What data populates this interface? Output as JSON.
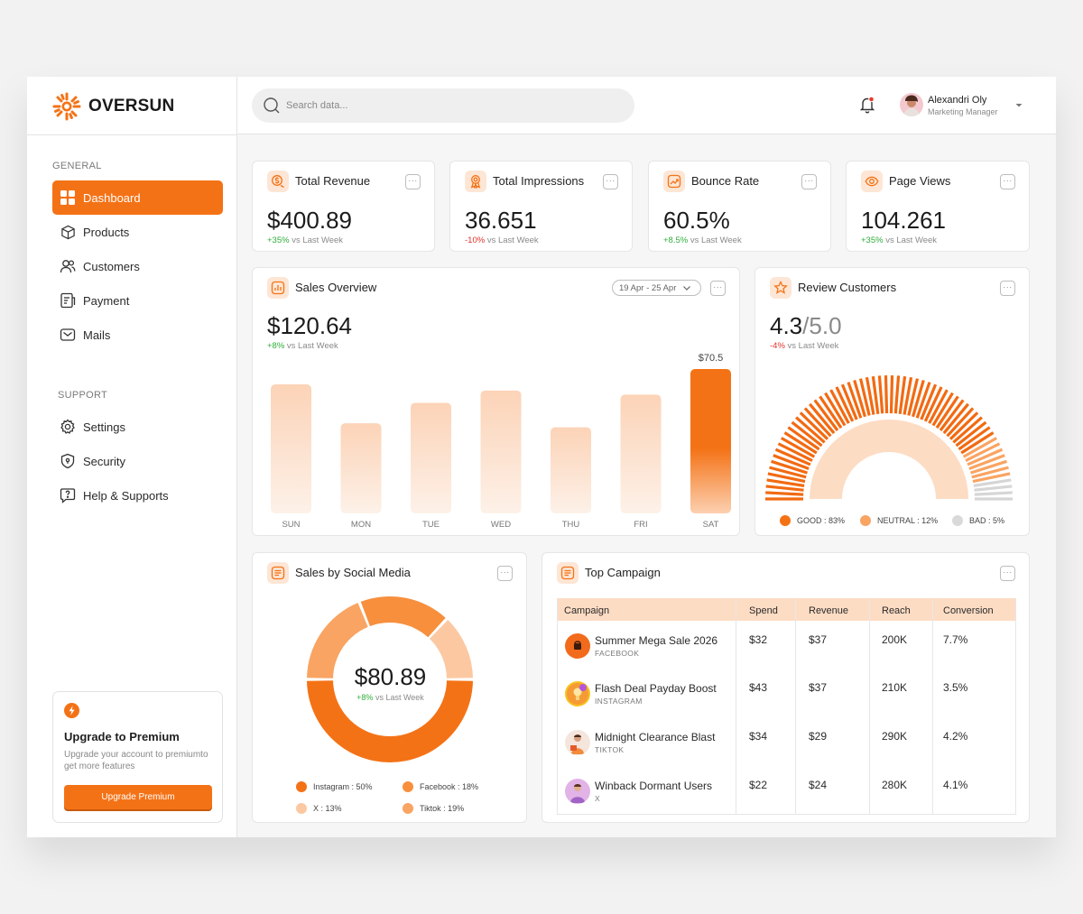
{
  "brand": {
    "name": "OVERSUN",
    "accent": "#F47216",
    "light_accent": "#FDE6D5"
  },
  "sidebar": {
    "general_label": "GENERAL",
    "items": [
      {
        "label": "Dashboard",
        "icon": "grid-icon",
        "active": true
      },
      {
        "label": "Products",
        "icon": "box-icon"
      },
      {
        "label": "Customers",
        "icon": "users-icon"
      },
      {
        "label": "Payment",
        "icon": "receipt-icon"
      },
      {
        "label": "Mails",
        "icon": "mail-icon"
      }
    ],
    "support_label": "SUPPORT",
    "support_items": [
      {
        "label": "Settings",
        "icon": "gear-icon"
      },
      {
        "label": "Security",
        "icon": "shield-icon"
      },
      {
        "label": "Help & Supports",
        "icon": "help-icon"
      }
    ],
    "upgrade": {
      "title": "Upgrade to Premium",
      "description": "Upgrade your account to premiumto get more features",
      "button": "Upgrade Premium"
    }
  },
  "header": {
    "search_placeholder": "Search data...",
    "user": {
      "name": "Alexandri Oly",
      "role": "Marketing Manager"
    }
  },
  "kpis": [
    {
      "title": "Total Revenue",
      "value": "$400.89",
      "delta": "+35%",
      "direction": "up",
      "suffix": "vs Last Week",
      "icon": "dollar-icon"
    },
    {
      "title": "Total Impressions",
      "value": "36.651",
      "delta": "-10%",
      "direction": "down",
      "suffix": "vs Last Week",
      "icon": "badge-icon"
    },
    {
      "title": "Bounce Rate",
      "value": "60.5%",
      "delta": "+8.5%",
      "direction": "up",
      "suffix": "vs Last Week",
      "icon": "trend-icon"
    },
    {
      "title": "Page Views",
      "value": "104.261",
      "delta": "+35%",
      "direction": "up",
      "suffix": "vs Last Week",
      "icon": "eye-icon"
    }
  ],
  "sales_overview": {
    "title": "Sales Overview",
    "date_range": "19 Apr - 25 Apr",
    "value": "$120.64",
    "delta": "+8%",
    "suffix": "vs Last Week",
    "highlight_label": "$70.5"
  },
  "review": {
    "title": "Review Customers",
    "score": "4.3",
    "max": "/5.0",
    "delta": "-4%",
    "suffix": "vs Last Week",
    "legend": [
      "GOOD : 83%",
      "NEUTRAL : 12%",
      "BAD : 5%"
    ]
  },
  "social": {
    "title": "Sales by Social Media",
    "value": "$80.89",
    "delta": "+8%",
    "suffix": "vs Last Week",
    "legend": [
      "Instagram : 50%",
      "Facebook : 18%",
      "X : 13%",
      "Tiktok : 19%"
    ]
  },
  "campaign": {
    "title": "Top Campaign",
    "columns": [
      "Campaign",
      "Spend",
      "Revenue",
      "Reach",
      "Conversion"
    ],
    "rows": [
      {
        "name": "Summer Mega Sale 2026",
        "platform": "FACEBOOK",
        "spend": "$32",
        "revenue": "$37",
        "reach": "200K",
        "conversion": "7.7%"
      },
      {
        "name": "Flash Deal Payday Boost",
        "platform": "INSTAGRAM",
        "spend": "$43",
        "revenue": "$37",
        "reach": "210K",
        "conversion": "3.5%"
      },
      {
        "name": "Midnight Clearance Blast",
        "platform": "TIKTOK",
        "spend": "$34",
        "revenue": "$29",
        "reach": "290K",
        "conversion": "4.2%"
      },
      {
        "name": "Winback Dormant Users",
        "platform": "X",
        "spend": "$22",
        "revenue": "$24",
        "reach": "280K",
        "conversion": "4.1%"
      }
    ]
  },
  "chart_data": [
    {
      "type": "bar",
      "categories": [
        "SUN",
        "MON",
        "TUE",
        "WED",
        "THU",
        "FRI",
        "SAT"
      ],
      "values": [
        63,
        44,
        54,
        60,
        42,
        58,
        70.5
      ],
      "highlight_index": 6
    },
    {
      "type": "pie",
      "categories": [
        "Instagram",
        "Facebook",
        "X",
        "Tiktok"
      ],
      "values": [
        50,
        18,
        13,
        19
      ]
    },
    {
      "type": "pie",
      "categories": [
        "GOOD",
        "NEUTRAL",
        "BAD"
      ],
      "values": [
        83,
        12,
        5
      ]
    }
  ]
}
